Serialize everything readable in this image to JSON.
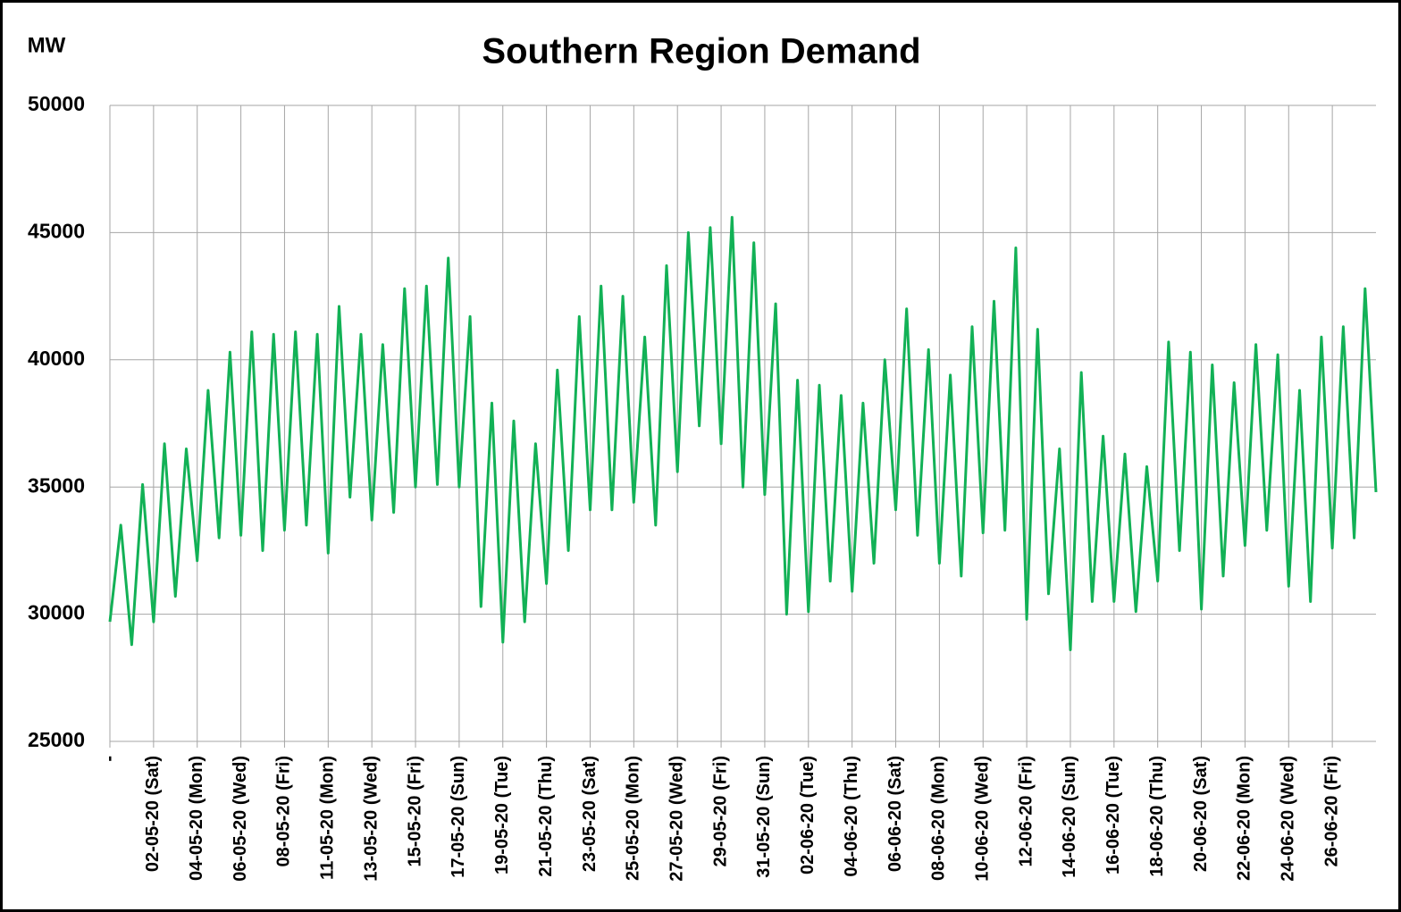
{
  "chart_data": {
    "type": "line",
    "title": "Southern Region Demand",
    "y_label": "MW",
    "color": "#12b156",
    "grid": true,
    "ylim": [
      25000,
      50000
    ],
    "yticks": [
      25000,
      30000,
      35000,
      40000,
      45000,
      50000
    ],
    "xlim": [
      0,
      58
    ],
    "xticks": [
      {
        "value": 0,
        "label": "-"
      },
      {
        "value": 2,
        "label": "02-05-20 (Sat)"
      },
      {
        "value": 4,
        "label": "04-05-20 (Mon)"
      },
      {
        "value": 6,
        "label": "06-05-20 (Wed)"
      },
      {
        "value": 8,
        "label": "08-05-20 (Fri)"
      },
      {
        "value": 10,
        "label": "11-05-20 (Mon)"
      },
      {
        "value": 12,
        "label": "13-05-20 (Wed)"
      },
      {
        "value": 14,
        "label": "15-05-20 (Fri)"
      },
      {
        "value": 16,
        "label": "17-05-20 (Sun)"
      },
      {
        "value": 18,
        "label": "19-05-20 (Tue)"
      },
      {
        "value": 20,
        "label": "21-05-20 (Thu)"
      },
      {
        "value": 22,
        "label": "23-05-20 (Sat)"
      },
      {
        "value": 24,
        "label": "25-05-20 (Mon)"
      },
      {
        "value": 26,
        "label": "27-05-20 (Wed)"
      },
      {
        "value": 28,
        "label": "29-05-20 (Fri)"
      },
      {
        "value": 30,
        "label": "31-05-20 (Sun)"
      },
      {
        "value": 32,
        "label": "02-06-20 (Tue)"
      },
      {
        "value": 34,
        "label": "04-06-20 (Thu)"
      },
      {
        "value": 36,
        "label": "06-06-20 (Sat)"
      },
      {
        "value": 38,
        "label": "08-06-20 (Mon)"
      },
      {
        "value": 40,
        "label": "10-06-20 (Wed)"
      },
      {
        "value": 42,
        "label": "12-06-20 (Fri)"
      },
      {
        "value": 44,
        "label": "14-06-20 (Sun)"
      },
      {
        "value": 46,
        "label": "16-06-20 (Tue)"
      },
      {
        "value": 48,
        "label": "18-06-20 (Thu)"
      },
      {
        "value": 50,
        "label": "20-06-20 (Sat)"
      },
      {
        "value": 52,
        "label": "22-06-20 (Mon)"
      },
      {
        "value": 54,
        "label": "24-06-20 (Wed)"
      },
      {
        "value": 56,
        "label": "26-06-20 (Fri)"
      }
    ],
    "x": [
      0,
      0.5,
      1,
      1.5,
      2,
      2.5,
      3,
      3.5,
      4,
      4.5,
      5,
      5.5,
      6,
      6.5,
      7,
      7.5,
      8,
      8.5,
      9,
      9.5,
      10,
      10.5,
      11,
      11.5,
      12,
      12.5,
      13,
      13.5,
      14,
      14.5,
      15,
      15.5,
      16,
      16.5,
      17,
      17.5,
      18,
      18.5,
      19,
      19.5,
      20,
      20.5,
      21,
      21.5,
      22,
      22.5,
      23,
      23.5,
      24,
      24.5,
      25,
      25.5,
      26,
      26.5,
      27,
      27.5,
      28,
      28.5,
      29,
      29.5,
      30,
      30.5,
      31,
      31.5,
      32,
      32.5,
      33,
      33.5,
      34,
      34.5,
      35,
      35.5,
      36,
      36.5,
      37,
      37.5,
      38,
      38.5,
      39,
      39.5,
      40,
      40.5,
      41,
      41.5,
      42,
      42.5,
      43,
      43.5,
      44,
      44.5,
      45,
      45.5,
      46,
      46.5,
      47,
      47.5,
      48,
      48.5,
      49,
      49.5,
      50,
      50.5,
      51,
      51.5,
      52,
      52.5,
      53,
      53.5,
      54,
      54.5,
      55,
      55.5,
      56,
      56.5,
      57,
      57.5,
      58
    ],
    "values": [
      29700,
      33500,
      28800,
      35100,
      29700,
      36700,
      30700,
      36500,
      32100,
      38800,
      33000,
      40300,
      33100,
      41100,
      32500,
      41000,
      33300,
      41100,
      33500,
      41000,
      32400,
      42100,
      34600,
      41000,
      33700,
      40600,
      34000,
      42800,
      35000,
      42900,
      35100,
      44000,
      35000,
      41700,
      30300,
      38300,
      28900,
      37600,
      29700,
      36700,
      31200,
      39600,
      32500,
      41700,
      34100,
      42900,
      34100,
      42500,
      34400,
      40900,
      33500,
      43700,
      35600,
      45000,
      37400,
      45200,
      36700,
      45600,
      35000,
      44600,
      34700,
      42200,
      30000,
      39200,
      30100,
      39000,
      31300,
      38600,
      30900,
      38300,
      32000,
      40000,
      34100,
      42000,
      33100,
      40400,
      32000,
      39400,
      31500,
      41300,
      33200,
      42300,
      33300,
      44400,
      29800,
      41200,
      30800,
      36500,
      28600,
      39500,
      30500,
      37000,
      30500,
      36300,
      30100,
      35800,
      31300,
      40700,
      32500,
      40300,
      30200,
      39800,
      31500,
      39100,
      32700,
      40600,
      33300,
      40200,
      31100,
      38800,
      30500,
      40900,
      32600,
      41300,
      33000,
      42800,
      34800
    ]
  }
}
